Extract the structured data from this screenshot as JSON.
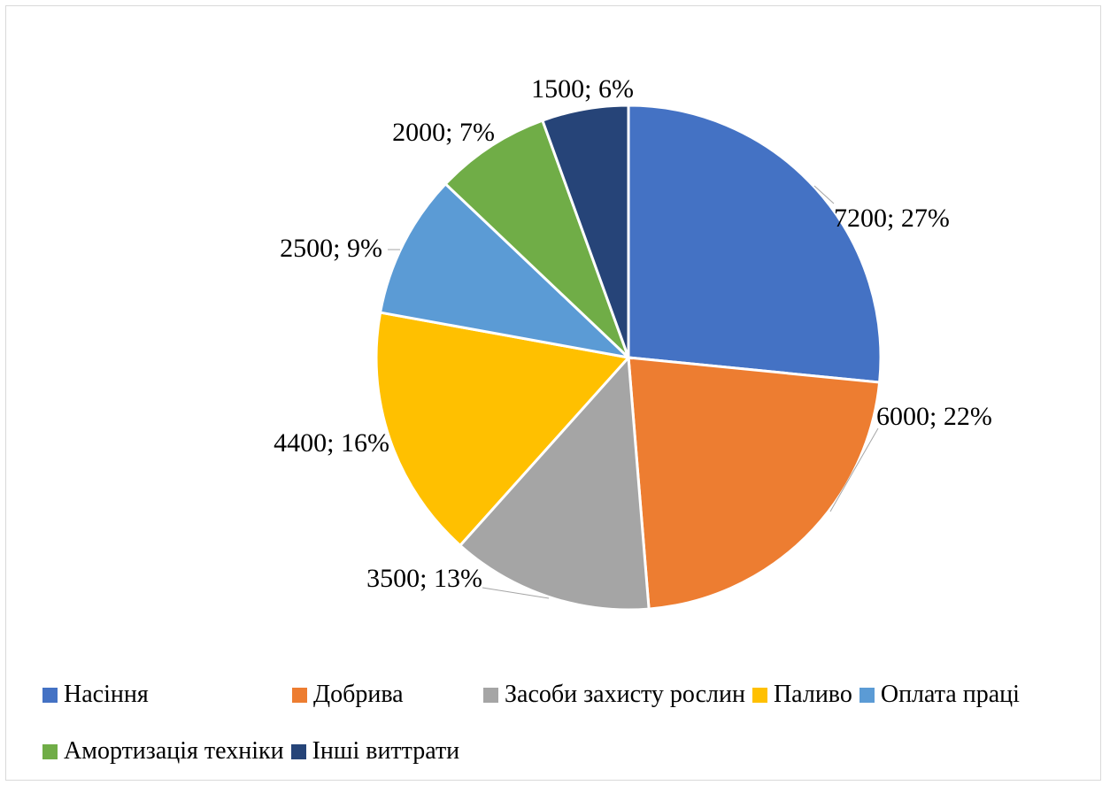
{
  "chart_data": {
    "type": "pie",
    "title": "",
    "categories": [
      "Насіння",
      "Добрива",
      "Засоби захисту рослин",
      "Паливо",
      "Оплата праці",
      "Амортизація техніки",
      "Інші виттрати"
    ],
    "values": [
      7200,
      6000,
      3500,
      4400,
      2500,
      2000,
      1500
    ],
    "labels": [
      "7200; 27%",
      "6000; 22%",
      "3500; 13%",
      "4400; 16%",
      "2500; 9%",
      "2000; 7%",
      "1500; 6%"
    ],
    "colors": [
      "#4472C4",
      "#ED7D31",
      "#A5A5A5",
      "#FFC000",
      "#5B9BD5",
      "#70AD47",
      "#264478"
    ],
    "legend_position": "bottom"
  }
}
